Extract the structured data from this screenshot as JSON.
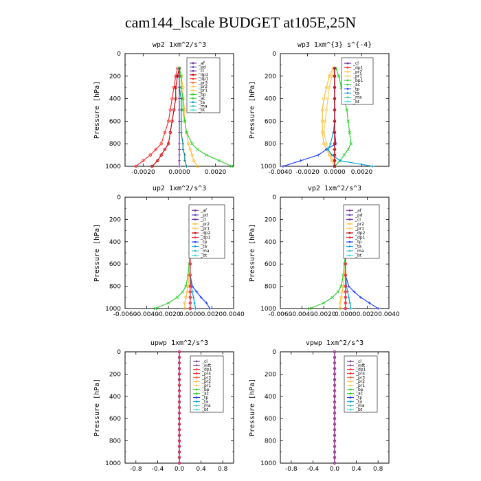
{
  "title": "cam144_lscale  BUDGET at105E,25N",
  "chart_data": [
    {
      "type": "line",
      "title": "wp2   1xm^2/s^3",
      "ylabel": "Pressure [hPa]",
      "ylim": [
        1000,
        0
      ],
      "yticks": [
        0,
        200,
        400,
        600,
        800,
        1000
      ],
      "xlim": [
        -0.003,
        0.003
      ],
      "xticks": [
        -0.002,
        0.0,
        0.002
      ],
      "xticklabels": [
        "-0.0020",
        "0.0000",
        "0.0020"
      ],
      "legend": [
        "_af",
        "_pd",
        "_cl",
        "_dp2",
        "_dp1",
        "_pr3",
        "_pr2",
        "_pr1",
        "_bp",
        "_ac",
        "_ta",
        "_ma",
        "_bt"
      ],
      "pressure": [
        130,
        200,
        300,
        400,
        500,
        600,
        700,
        800,
        850,
        900,
        950,
        1000
      ],
      "series": [
        {
          "name": "_dp1",
          "color": "#ff3030",
          "marker": "circle",
          "values": [
            -0.0001,
            -0.0002,
            -0.0003,
            -0.0004,
            -0.0005,
            -0.0006,
            -0.0008,
            -0.001,
            -0.0013,
            -0.0016,
            -0.002,
            -0.0024
          ]
        },
        {
          "name": "_cl",
          "color": "#cc0000",
          "marker": "circle",
          "values": [
            0,
            -0.0001,
            -0.0002,
            -0.0002,
            -0.0003,
            -0.0004,
            -0.0005,
            -0.0006,
            -0.0008,
            -0.001,
            -0.0012,
            -0.0015
          ]
        },
        {
          "name": "_pr1",
          "color": "#ffc040",
          "marker": "circle",
          "values": [
            0,
            0.0001,
            0.0002,
            0.0002,
            0.0003,
            0.0003,
            0.0004,
            0.0005,
            0.0006,
            0.0007,
            0.0008,
            0.001
          ]
        },
        {
          "name": "_bp",
          "color": "#30d030",
          "marker": "x",
          "values": [
            0,
            0.0001,
            0.0001,
            0.0002,
            0.0002,
            0.0003,
            0.0004,
            0.0007,
            0.001,
            0.0015,
            0.0022,
            0.0029
          ]
        },
        {
          "name": "_ac",
          "color": "#008080",
          "marker": "cross",
          "values": [
            0,
            0,
            0,
            0.0001,
            0.0001,
            0.0001,
            0.0001,
            0.0002,
            0.0002,
            0.0003,
            0.0003,
            0.0004
          ]
        },
        {
          "name": "_af",
          "color": "#7030a0",
          "marker": "cross",
          "values": [
            0,
            0,
            0,
            0,
            0,
            0,
            0,
            0,
            0,
            0,
            0,
            0
          ]
        }
      ]
    },
    {
      "type": "line",
      "title": "wp3   1xm^{3} s^{-4}",
      "ylabel": "Pressure [hPa]",
      "ylim": [
        1000,
        0
      ],
      "yticks": [
        0,
        200,
        400,
        600,
        800,
        1000
      ],
      "xlim": [
        -0.004,
        0.004
      ],
      "xticks": [
        -0.004,
        -0.002,
        0.0,
        0.002
      ],
      "xticklabels": [
        "-0.0040",
        "-0.0020",
        "0.0000",
        "0.0020"
      ],
      "legend": [
        "_cl",
        "_dp1",
        "_pr2",
        "_pr1",
        "_bp1",
        "_ac",
        "_tp",
        "_ta",
        "_ma",
        "_bt"
      ],
      "pressure": [
        130,
        200,
        300,
        400,
        500,
        600,
        700,
        800,
        850,
        900,
        950,
        1000
      ],
      "series": [
        {
          "name": "_pr2",
          "color": "#ffc040",
          "marker": "circle",
          "values": [
            -0.0001,
            -0.0004,
            -0.0006,
            -0.0008,
            -0.0009,
            -0.0009,
            -0.0009,
            -0.0008,
            -0.0006,
            -0.0004,
            -0.0002,
            0
          ]
        },
        {
          "name": "_pr1",
          "color": "#ffd060",
          "marker": "circle",
          "values": [
            0,
            -0.0002,
            -0.0004,
            -0.0005,
            -0.0006,
            -0.0007,
            -0.0008,
            -0.0006,
            -0.0005,
            -0.0003,
            -0.0001,
            0
          ]
        },
        {
          "name": "_ac",
          "color": "#30d030",
          "marker": "x",
          "values": [
            0.0001,
            0.0003,
            0.0005,
            0.0007,
            0.0009,
            0.001,
            0.0011,
            0.0012,
            0.001,
            0.0007,
            0.0004,
            0
          ]
        },
        {
          "name": "_tp",
          "color": "#2040ff",
          "marker": "cross",
          "values": [
            0,
            0,
            0,
            0,
            0,
            0,
            0,
            0.0001,
            -0.0006,
            -0.0012,
            -0.0025,
            -0.0038
          ]
        },
        {
          "name": "_ta",
          "color": "#00a0e0",
          "marker": "cross",
          "values": [
            0,
            0,
            0,
            0,
            0,
            0,
            -0.0001,
            -0.0003,
            -0.0005,
            -0.0002,
            0.0004,
            0.0028
          ]
        },
        {
          "name": "_cl",
          "color": "#7030a0",
          "marker": "cross",
          "values": [
            0,
            0,
            0,
            0,
            0,
            0,
            0,
            0,
            0,
            0,
            0,
            0
          ]
        },
        {
          "name": "_dp1",
          "color": "#cc0000",
          "marker": "circle",
          "values": [
            0,
            0,
            0,
            0,
            0,
            0,
            0,
            0,
            0,
            0,
            0,
            0
          ]
        }
      ]
    },
    {
      "type": "line",
      "title": "up2   1xm^2/s^3",
      "ylabel": "Pressure [hPa]",
      "ylim": [
        1000,
        0
      ],
      "yticks": [
        0,
        200,
        400,
        600,
        800,
        1000
      ],
      "xlim": [
        -0.006,
        0.004
      ],
      "xticks": [
        -0.006,
        -0.004,
        -0.002,
        0.0,
        0.002,
        0.004
      ],
      "xticklabels": [
        "-0.0060",
        "-0.0040",
        "-0.0020",
        "0.0000",
        "0.0020",
        "0.0040"
      ],
      "legend": [
        "_af",
        "_pd",
        "_cl",
        "_pr2",
        "_pr1",
        "_dp2",
        "_dp1",
        "_tp",
        "_ta",
        "_ma",
        "_bt"
      ],
      "pressure": [
        100,
        200,
        300,
        400,
        500,
        600,
        700,
        800,
        850,
        900,
        950,
        1000
      ],
      "series": [
        {
          "name": "_dp2",
          "color": "#30d030",
          "marker": "x",
          "values": [
            0,
            0,
            0,
            0,
            0,
            -0.0001,
            -0.0002,
            -0.0004,
            -0.0007,
            -0.0012,
            -0.002,
            -0.0032
          ]
        },
        {
          "name": "_pr2",
          "color": "#ffc040",
          "marker": "circle",
          "values": [
            0,
            0,
            0,
            0,
            0,
            0,
            -0.0001,
            -0.0002,
            -0.0003,
            -0.0004,
            -0.0005,
            -0.0005
          ]
        },
        {
          "name": "_tp",
          "color": "#2040ff",
          "marker": "cross",
          "values": [
            0,
            0,
            0,
            0,
            0,
            0,
            0,
            0.0002,
            0.0006,
            0.001,
            0.0015,
            0.0018
          ]
        },
        {
          "name": "_ta",
          "color": "#00a0e0",
          "marker": "cross",
          "values": [
            0,
            0,
            0,
            0,
            0,
            0,
            0,
            0.0001,
            0.0002,
            0.0003,
            0.0004,
            0.0005
          ]
        },
        {
          "name": "_af",
          "color": "#7030a0",
          "marker": "cross",
          "values": [
            0,
            0,
            0,
            0,
            0,
            0,
            0,
            0,
            0,
            0,
            0,
            0
          ]
        },
        {
          "name": "_cl",
          "color": "#ff3030",
          "marker": "circle",
          "values": [
            0,
            0,
            0,
            0,
            0,
            0,
            0,
            0,
            0,
            0,
            0,
            0
          ]
        }
      ]
    },
    {
      "type": "line",
      "title": "vp2   1xm^2/s^3",
      "ylabel": "Pressure [hPa]",
      "ylim": [
        1000,
        0
      ],
      "yticks": [
        0,
        200,
        400,
        600,
        800,
        1000
      ],
      "xlim": [
        -0.006,
        0.004
      ],
      "xticks": [
        -0.006,
        -0.004,
        -0.002,
        0.0,
        0.002,
        0.004
      ],
      "xticklabels": [
        "-0.0060",
        "-0.0040",
        "-0.0020",
        "0.0000",
        "0.0020",
        "0.0040"
      ],
      "legend": [
        "_af",
        "_pd",
        "_cl",
        "_pr2",
        "_pr1",
        "_dp2",
        "_dp1",
        "_tp",
        "_ta",
        "_ma",
        "_bt"
      ],
      "pressure": [
        100,
        200,
        300,
        400,
        500,
        600,
        700,
        800,
        850,
        900,
        950,
        1000
      ],
      "series": [
        {
          "name": "_dp2",
          "color": "#30d030",
          "marker": "x",
          "values": [
            0,
            0,
            0,
            0,
            0,
            -0.0001,
            -0.0002,
            -0.0004,
            -0.0007,
            -0.0012,
            -0.002,
            -0.0033
          ]
        },
        {
          "name": "_pr2",
          "color": "#ffc040",
          "marker": "circle",
          "values": [
            0,
            0,
            0,
            0,
            0,
            0,
            -0.0001,
            -0.0002,
            -0.0003,
            -0.0004,
            -0.0005,
            -0.0005
          ]
        },
        {
          "name": "_tp",
          "color": "#2040ff",
          "marker": "cross",
          "values": [
            0,
            0,
            0,
            0,
            0,
            0,
            0,
            0.0003,
            0.0008,
            0.0014,
            0.0022,
            0.003
          ]
        },
        {
          "name": "_ta",
          "color": "#00a0e0",
          "marker": "cross",
          "values": [
            0,
            0,
            0,
            0,
            0,
            0,
            0,
            0.0001,
            0.0002,
            0.0003,
            0.0004,
            0.0005
          ]
        },
        {
          "name": "_af",
          "color": "#7030a0",
          "marker": "cross",
          "values": [
            0,
            0,
            0,
            0,
            0,
            0,
            0,
            0,
            0,
            0,
            0,
            0
          ]
        },
        {
          "name": "_cl",
          "color": "#ff3030",
          "marker": "circle",
          "values": [
            0,
            0,
            0,
            0,
            0,
            0,
            0,
            0,
            0,
            0,
            0,
            0
          ]
        }
      ]
    },
    {
      "type": "line",
      "title": "upwp   1xm^2/s^3",
      "ylabel": "Pressure [hPa]",
      "ylim": [
        1000,
        0
      ],
      "yticks": [
        0,
        200,
        400,
        600,
        800,
        1000
      ],
      "xlim": [
        -1.0,
        1.0
      ],
      "xticks": [
        -0.8,
        -0.4,
        0.0,
        0.4,
        0.8
      ],
      "xticklabels": [
        "-0.8",
        "-0.4",
        "0.0",
        "0.4",
        "0.8"
      ],
      "legend": [
        "_cl",
        "_mft",
        "_dp1",
        "_pr4",
        "_pr3",
        "_pr2",
        "_pr1",
        "_bp",
        "_ac",
        "_tp",
        "_ta",
        "_ma",
        "_bt"
      ],
      "pressure": [
        0,
        50,
        100,
        150,
        200,
        250,
        300,
        350,
        400,
        450,
        500,
        550,
        600,
        650,
        700,
        750,
        800,
        850,
        900,
        950,
        1000
      ],
      "series": [
        {
          "name": "_pr1",
          "color": "#ff2020",
          "marker": "circle",
          "values": [
            0,
            0,
            0,
            0,
            0,
            0,
            0,
            0,
            0,
            0,
            0,
            0,
            0,
            0,
            0,
            0,
            0,
            0,
            0,
            0,
            0
          ]
        },
        {
          "name": "_cl",
          "color": "#7030a0",
          "marker": "cross",
          "values": [
            0,
            0,
            0,
            0,
            0,
            0,
            0,
            0,
            0,
            0,
            0,
            0,
            0,
            0,
            0,
            0,
            0,
            0,
            0,
            0,
            0
          ]
        }
      ]
    },
    {
      "type": "line",
      "title": "vpwp   1xm^2/s^3",
      "ylabel": "Pressure [hPa]",
      "ylim": [
        1000,
        0
      ],
      "yticks": [
        0,
        200,
        400,
        600,
        800,
        1000
      ],
      "xlim": [
        -1.0,
        1.0
      ],
      "xticks": [
        -0.8,
        -0.4,
        0.0,
        0.4,
        0.8
      ],
      "xticklabels": [
        "-0.8",
        "-0.4",
        "0.0",
        "0.4",
        "0.8"
      ],
      "legend": [
        "_cl",
        "_mft",
        "_dp1",
        "_pr4",
        "_pr3",
        "_pr2",
        "_pr1",
        "_bp",
        "_ac",
        "_tp",
        "_ta",
        "_ma",
        "_bt"
      ],
      "pressure": [
        0,
        50,
        100,
        150,
        200,
        250,
        300,
        350,
        400,
        450,
        500,
        550,
        600,
        650,
        700,
        750,
        800,
        850,
        900,
        950,
        1000
      ],
      "series": [
        {
          "name": "_pr1",
          "color": "#ff2020",
          "marker": "circle",
          "values": [
            0,
            0,
            0,
            0,
            0,
            0,
            0,
            0,
            0,
            0,
            0,
            0,
            0,
            0,
            0,
            0,
            0,
            0,
            0,
            0,
            0
          ]
        },
        {
          "name": "_cl",
          "color": "#7030a0",
          "marker": "cross",
          "values": [
            0,
            0,
            0,
            0,
            0,
            0,
            0,
            0,
            0,
            0,
            0,
            0,
            0,
            0,
            0,
            0,
            0,
            0,
            0,
            0,
            0
          ]
        }
      ]
    }
  ],
  "legend_colors": {
    "_af": "#7030a0",
    "_pd": "#6040c0",
    "_cl": "#7030a0",
    "_mft": "#a040a0",
    "_dp2": "#cc0000",
    "_dp1": "#ff3030",
    "_pr4": "#ff3030",
    "_pr3": "#ff6040",
    "_pr2": "#ffc040",
    "_pr1": "#ffd060",
    "_bp": "#30d030",
    "_bp1": "#30d030",
    "_ac": "#30d030",
    "_tp": "#2040ff",
    "_ta": "#00a0e0",
    "_ma": "#40c0c0",
    "_bt": "#40e0e0"
  }
}
